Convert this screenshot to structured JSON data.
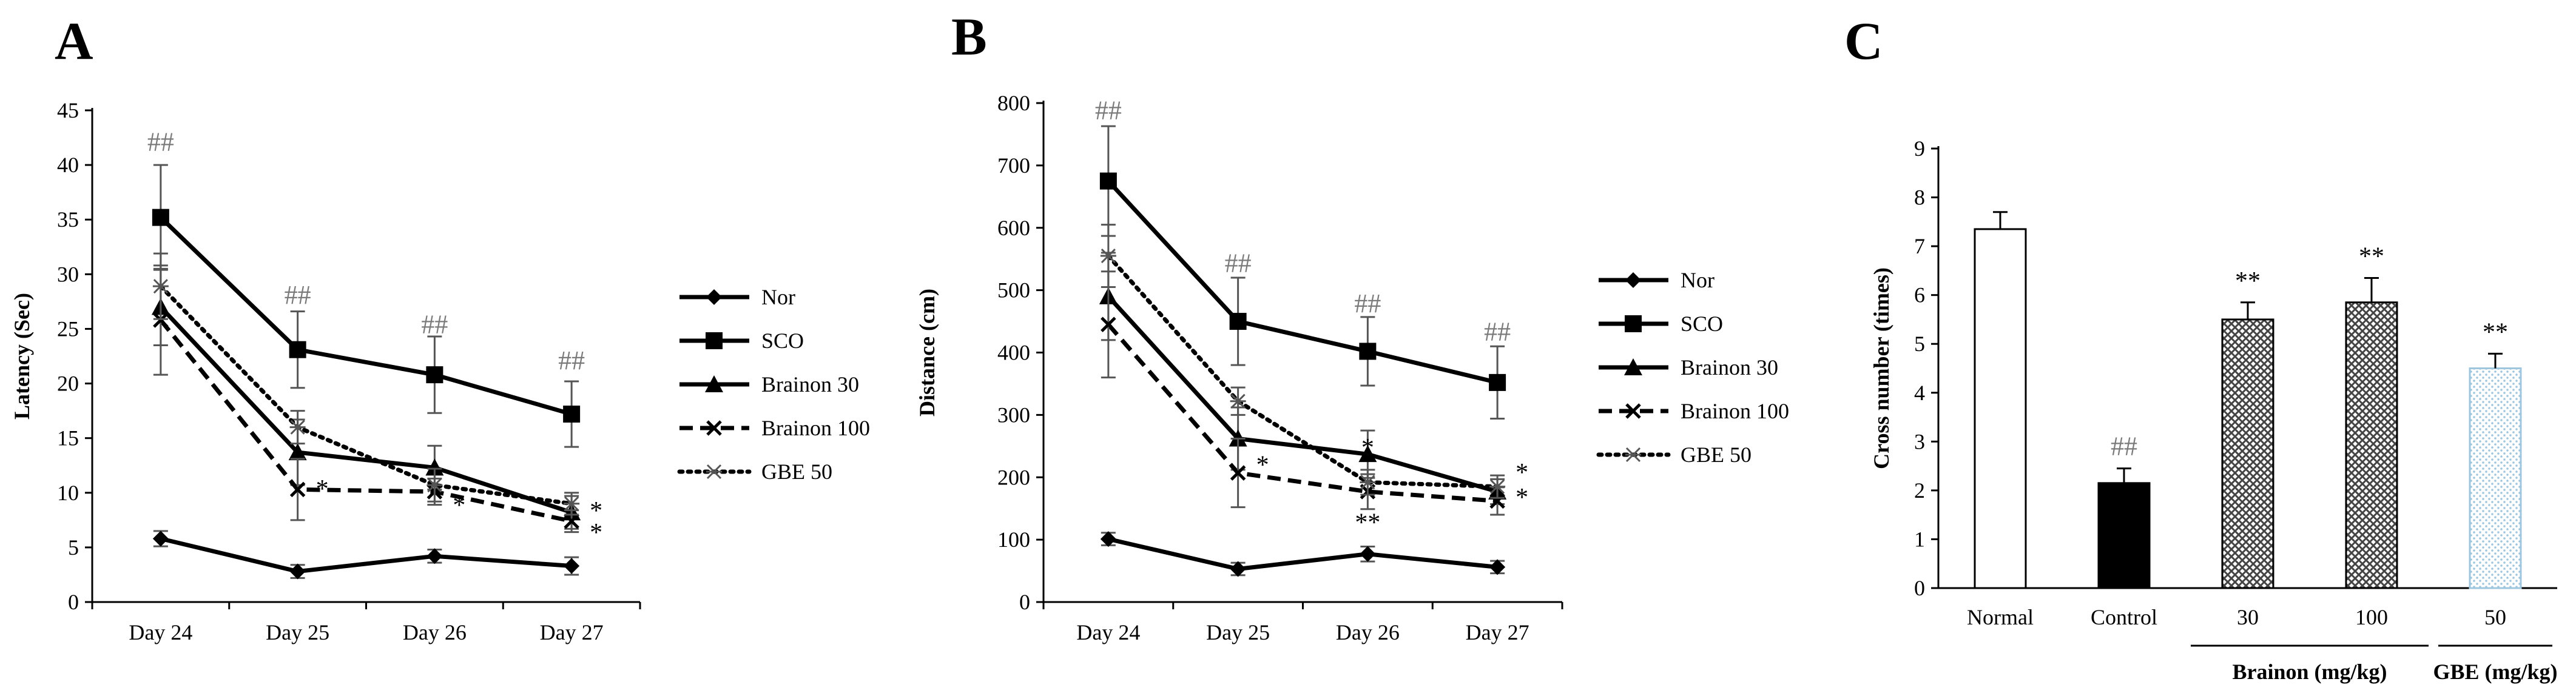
{
  "chart_data": [
    {
      "panel": "A",
      "type": "line",
      "ylabel": "Latency (Sec)",
      "xlabel": "",
      "ylim": [
        0,
        45
      ],
      "yticks": [
        0,
        5,
        10,
        15,
        20,
        25,
        30,
        35,
        40,
        45
      ],
      "categories": [
        "Day 24",
        "Day 25",
        "Day 26",
        "Day 27"
      ],
      "series": [
        {
          "name": "Nor",
          "values": [
            5.8,
            2.8,
            4.2,
            3.3
          ],
          "errors": [
            0.7,
            0.6,
            0.6,
            0.8
          ],
          "marker": "diamond",
          "dash": "solid"
        },
        {
          "name": "SCO",
          "values": [
            35.2,
            23.1,
            20.8,
            17.2
          ],
          "errors": [
            4.8,
            3.5,
            3.5,
            3.0
          ],
          "marker": "square",
          "dash": "solid"
        },
        {
          "name": "Brainon 30",
          "values": [
            27.0,
            13.7,
            12.3,
            8.2
          ],
          "errors": [
            3.5,
            3.0,
            2.0,
            1.5
          ],
          "marker": "triangle",
          "dash": "solid"
        },
        {
          "name": "Brainon 100",
          "values": [
            25.8,
            10.3,
            10.1,
            7.4
          ],
          "errors": [
            5.0,
            2.8,
            1.2,
            1.0
          ],
          "marker": "x",
          "dash": "dash"
        },
        {
          "name": "GBE 50",
          "values": [
            28.9,
            16.0,
            10.7,
            9.0
          ],
          "errors": [
            3.0,
            1.5,
            1.5,
            1.0
          ],
          "marker": "asterisk",
          "dash": "dot"
        }
      ],
      "annotations": [
        {
          "text": "##",
          "category": "Day 24",
          "y": 42.2
        },
        {
          "text": "##",
          "category": "Day 25",
          "y": 28.2
        },
        {
          "text": "##",
          "category": "Day 26",
          "y": 25.5
        },
        {
          "text": "##",
          "category": "Day 27",
          "y": 22.2
        },
        {
          "text": "*",
          "category": "Day 25",
          "y": 10.5,
          "side": "right"
        },
        {
          "text": "*",
          "category": "Day 26",
          "y": 9.0,
          "side": "right"
        },
        {
          "text": "*",
          "category": "Day 27",
          "y": 8.5,
          "side": "right"
        },
        {
          "text": "*",
          "category": "Day 27",
          "y": 6.5,
          "side": "right"
        }
      ]
    },
    {
      "panel": "B",
      "type": "line",
      "ylabel": "Distance (cm)",
      "xlabel": "",
      "ylim": [
        0,
        800
      ],
      "yticks": [
        0,
        100,
        200,
        300,
        400,
        500,
        600,
        700,
        800
      ],
      "categories": [
        "Day 24",
        "Day 25",
        "Day 26",
        "Day 27"
      ],
      "series": [
        {
          "name": "Nor",
          "values": [
            101,
            53,
            77,
            56
          ],
          "errors": [
            10,
            10,
            12,
            10
          ],
          "marker": "diamond",
          "dash": "solid"
        },
        {
          "name": "SCO",
          "values": [
            675,
            450,
            402,
            352
          ],
          "errors": [
            88,
            70,
            55,
            58
          ],
          "marker": "square",
          "dash": "solid"
        },
        {
          "name": "Brainon 30",
          "values": [
            490,
            262,
            237,
            177
          ],
          "errors": [
            70,
            50,
            38,
            20
          ],
          "marker": "triangle",
          "dash": "solid"
        },
        {
          "name": "Brainon 100",
          "values": [
            445,
            207,
            177,
            162
          ],
          "errors": [
            85,
            55,
            28,
            22
          ],
          "marker": "x",
          "dash": "dash"
        },
        {
          "name": "GBE 50",
          "values": [
            555,
            322,
            192,
            185
          ],
          "errors": [
            50,
            22,
            20,
            18
          ],
          "marker": "asterisk",
          "dash": "dot"
        }
      ],
      "annotations": [
        {
          "text": "##",
          "category": "Day 24",
          "y": 790
        },
        {
          "text": "##",
          "category": "Day 25",
          "y": 545
        },
        {
          "text": "##",
          "category": "Day 26",
          "y": 480
        },
        {
          "text": "##",
          "category": "Day 27",
          "y": 435
        },
        {
          "text": "*",
          "category": "Day 25",
          "y": 222,
          "side": "right"
        },
        {
          "text": "*",
          "category": "Day 26",
          "y": 250,
          "side": "center"
        },
        {
          "text": "**",
          "category": "Day 26",
          "y": 130,
          "side": "center"
        },
        {
          "text": "*",
          "category": "Day 27",
          "y": 210,
          "side": "right"
        },
        {
          "text": "*",
          "category": "Day 27",
          "y": 170,
          "side": "right"
        }
      ]
    },
    {
      "panel": "C",
      "type": "bar",
      "ylabel": "Cross number (times)",
      "xlabel": "",
      "ylim": [
        0,
        9
      ],
      "yticks": [
        0,
        1,
        2,
        3,
        4,
        5,
        6,
        7,
        8,
        9
      ],
      "categories": [
        "Normal",
        "Control",
        "30",
        "100",
        "50"
      ],
      "values": [
        7.35,
        2.15,
        5.5,
        5.85,
        4.5
      ],
      "errors": [
        0.35,
        0.3,
        0.35,
        0.5,
        0.3
      ],
      "fills": [
        "white",
        "black",
        "crosshatch",
        "crosshatch",
        "dots"
      ],
      "bar_annotations": [
        "",
        "##",
        "**",
        "**",
        "**"
      ],
      "groups": [
        {
          "label": "Brainon (mg/kg)",
          "categories": [
            "30",
            "100"
          ]
        },
        {
          "label": "GBE (mg/kg)",
          "categories": [
            "50"
          ]
        }
      ]
    }
  ],
  "legend": [
    "Nor",
    "SCO",
    "Brainon 30",
    "Brainon 100",
    "GBE 50"
  ],
  "panel_letters": [
    "A",
    "B",
    "C"
  ],
  "colors": {
    "ink": "#000000",
    "annotation": "#7a7a7a",
    "dots": "#9ec6df"
  }
}
